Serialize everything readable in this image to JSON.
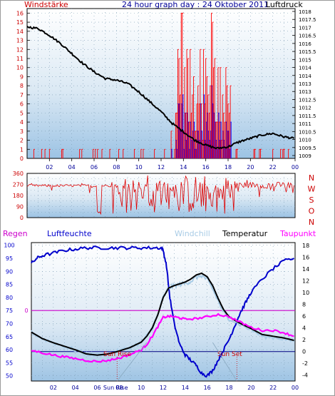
{
  "header": {
    "left_title": "Windstärke",
    "center_title": "24 hour graph day : 24 Oktober 2011",
    "right_title": "Luftdruck"
  },
  "bottom_header": {
    "regen": "Regen",
    "luftfeuchte": "Luftfeuchte",
    "windchill": "Windchill",
    "temperatur": "Temperatur",
    "taupunkt": "Taupunkt"
  },
  "colors": {
    "wind_label": "#cc0000",
    "pressure_label": "#000000",
    "wind_direction": "#dd0000",
    "regen": "#cc00cc",
    "luftfeuchte": "#0000cc",
    "windchill": "#a9cce6",
    "temperatur": "#000000",
    "taupunkt": "#ff00ff",
    "gust": "#ff0000",
    "avg_wind": "#0000ff",
    "pressure": "#000000",
    "dew": "#ff00ff",
    "grid": "#7a9ab2"
  },
  "annotations": {
    "sunrise_label": "Sun Rise",
    "sunset_label": "Sun Set",
    "sunrise_axis_label": "Sun Rise"
  },
  "chart_data": [
    {
      "type": "line",
      "name": "wind-pressure",
      "x_ticks": [
        "02",
        "04",
        "06",
        "08",
        "10",
        "12",
        "14",
        "16",
        "18",
        "20",
        "22",
        "00"
      ],
      "y_left_ticks": [
        "0",
        "1",
        "2",
        "3",
        "4",
        "5",
        "6",
        "7",
        "8",
        "9",
        "10",
        "11",
        "12",
        "13",
        "14",
        "15",
        "16"
      ],
      "y_right_ticks": [
        "1009",
        "1009.5",
        "1010",
        "1010.5",
        "1011",
        "1011.5",
        "1012",
        "1012.5",
        "1013",
        "1013",
        "1014",
        "1014",
        "1015",
        "1015.5",
        "1016",
        "1016.5",
        "1017",
        "1017.5",
        "1018"
      ],
      "xlim": [
        0,
        24
      ],
      "ylim_left": [
        0,
        16.5
      ],
      "ylim_right": [
        1009,
        1018
      ],
      "pressure": {
        "x": [
          0,
          1,
          2,
          3,
          4,
          5,
          6,
          7,
          8,
          9,
          10,
          11,
          12,
          13,
          14,
          15,
          16,
          17,
          18,
          19,
          20,
          21,
          22,
          23,
          23.9
        ],
        "y": [
          1016.9,
          1016.8,
          1016.4,
          1015.9,
          1015.3,
          1014.7,
          1014.2,
          1013.8,
          1013.7,
          1013.5,
          1013.0,
          1012.4,
          1011.8,
          1011.1,
          1010.6,
          1010.1,
          1009.8,
          1009.6,
          1009.7,
          1010.0,
          1010.2,
          1010.4,
          1010.5,
          1010.3,
          1010.2
        ]
      }
    },
    {
      "type": "line",
      "name": "wind-direction",
      "x_ticks": [
        "02",
        "04",
        "06",
        "08",
        "10",
        "12",
        "14",
        "16",
        "18",
        "20",
        "22",
        "00"
      ],
      "y_left_ticks": [
        "0",
        "90",
        "180",
        "270",
        "360"
      ],
      "y_right_ticks": [
        "N",
        "W",
        "S",
        "O",
        "N"
      ],
      "xlim": [
        0,
        24
      ],
      "ylim": [
        0,
        360
      ]
    },
    {
      "type": "line",
      "name": "temp-humidity",
      "x_ticks": [
        "02",
        "04",
        "06",
        "08",
        "10",
        "12",
        "14",
        "16",
        "18",
        "20",
        "22",
        "00"
      ],
      "sunrise_tick": "Sun Rise",
      "y_left_ticks": [
        "50",
        "55",
        "60",
        "65",
        "70",
        "75",
        "80",
        "85",
        "90",
        "95",
        "100"
      ],
      "y_right_ticks": [
        "-4",
        "-2",
        "0",
        "2",
        "4",
        "6",
        "8",
        "10",
        "12",
        "14",
        "16",
        "18"
      ],
      "regen_tick": "0",
      "xlim": [
        0,
        24
      ],
      "ylim_left": [
        48,
        101
      ],
      "ylim_right": [
        -5,
        18.5
      ],
      "series": [
        {
          "name": "Luftfeuchte",
          "x": [
            0,
            0.5,
            1,
            2,
            3,
            4,
            5,
            6,
            7,
            8,
            9,
            10,
            11,
            11.8,
            12,
            12.3,
            12.6,
            13,
            13.5,
            14,
            14.5,
            15,
            15.5,
            16,
            16.5,
            17,
            17.5,
            18,
            18.5,
            19,
            19.5,
            20,
            21,
            22,
            23,
            23.9
          ],
          "y": [
            93,
            95,
            96,
            97,
            98,
            98.5,
            99,
            99,
            99,
            99,
            99,
            99,
            99,
            99,
            98,
            92,
            80,
            70,
            62,
            58,
            56,
            54,
            51,
            50,
            52,
            56,
            60,
            64,
            69,
            74,
            78,
            82,
            87,
            91,
            94,
            95
          ]
        },
        {
          "name": "Windchill",
          "x": [
            0,
            1,
            2,
            3,
            4,
            5,
            6,
            7,
            8,
            9,
            10,
            10.5,
            11,
            11.5,
            12,
            12.5,
            13,
            13.5,
            14,
            14.5,
            15,
            15.5,
            16,
            16.5,
            17,
            17.5,
            18,
            19,
            20,
            21,
            22,
            23,
            23.9
          ],
          "y": [
            3.3,
            2.2,
            1.5,
            0.9,
            0.3,
            -0.4,
            -0.6,
            -0.4,
            0.1,
            0.7,
            1.6,
            2.6,
            4.0,
            6.2,
            9.2,
            10.8,
            11.2,
            11.4,
            11.6,
            11.9,
            12.6,
            12.9,
            12.2,
            10.6,
            8.6,
            6.6,
            5.6,
            4.6,
            3.7,
            2.6,
            2.4,
            2.2,
            1.7
          ]
        },
        {
          "name": "Temperatur",
          "x": [
            0,
            1,
            2,
            3,
            4,
            5,
            6,
            7,
            8,
            9,
            10,
            10.5,
            11,
            11.5,
            12,
            12.5,
            13,
            13.5,
            14,
            14.5,
            15,
            15.5,
            16,
            16.5,
            17,
            17.5,
            18,
            19,
            20,
            21,
            22,
            23,
            23.9
          ],
          "y": [
            3.3,
            2.2,
            1.5,
            0.9,
            0.3,
            -0.4,
            -0.6,
            -0.4,
            0.1,
            0.7,
            1.6,
            2.6,
            4.0,
            6.2,
            9.2,
            10.8,
            11.2,
            11.5,
            11.8,
            12.3,
            13.0,
            13.3,
            12.7,
            11.2,
            9.0,
            7.1,
            5.9,
            4.8,
            3.9,
            2.9,
            2.6,
            2.3,
            1.9
          ]
        },
        {
          "name": "Taupunkt",
          "x": [
            0,
            1,
            2,
            3,
            4,
            5,
            6,
            7,
            8,
            9,
            10,
            10.5,
            11,
            11.5,
            12,
            12.5,
            13,
            13.5,
            14,
            15,
            16,
            17,
            18,
            19,
            20,
            21,
            22,
            23,
            23.9
          ],
          "y": [
            0.2,
            -0.2,
            -0.6,
            -0.9,
            -1.2,
            -1.5,
            -1.7,
            -1.5,
            -1.1,
            -0.5,
            0.3,
            1.2,
            2.6,
            4.2,
            5.8,
            6.0,
            5.9,
            5.7,
            5.5,
            5.6,
            5.9,
            6.3,
            5.9,
            5.0,
            4.1,
            3.6,
            3.6,
            3.2,
            2.6
          ]
        }
      ],
      "regen_level": 0,
      "sunrise_x": 7.8,
      "sunset_x": 18.7
    }
  ]
}
